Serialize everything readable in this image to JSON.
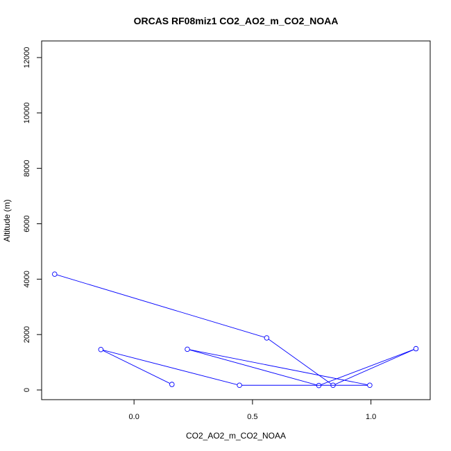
{
  "chart_data": {
    "type": "line",
    "title": "ORCAS RF08miz1 CO2_AO2_m_CO2_NOAA",
    "xlabel": "CO2_AO2_m_CO2_NOAA",
    "ylabel": "Altitude (m)",
    "xlim": [
      -0.39,
      1.25
    ],
    "ylim": [
      -350,
      12600
    ],
    "x_ticks": [
      {
        "value": 0,
        "label": "0.0"
      },
      {
        "value": 0.5,
        "label": "0.5"
      },
      {
        "value": 1,
        "label": "1.0"
      }
    ],
    "y_ticks": [
      {
        "value": 0,
        "label": "0"
      },
      {
        "value": 2000,
        "label": "2000"
      },
      {
        "value": 4000,
        "label": "4000"
      },
      {
        "value": 6000,
        "label": "6000"
      },
      {
        "value": 8000,
        "label": "8000"
      },
      {
        "value": 10000,
        "label": "10000"
      },
      {
        "value": 12000,
        "label": "12000"
      }
    ],
    "grid": false,
    "series": [
      {
        "color": "#0000ff",
        "markers": "open-circle",
        "points": [
          {
            "x": -0.335,
            "y": 4180
          },
          {
            "x": 0.56,
            "y": 1880
          },
          {
            "x": 0.84,
            "y": 170
          },
          {
            "x": 1.19,
            "y": 1490
          },
          {
            "x": 0.78,
            "y": 160
          },
          {
            "x": 0.225,
            "y": 1470
          },
          {
            "x": 0.995,
            "y": 170
          },
          {
            "x": 0.445,
            "y": 170
          },
          {
            "x": -0.14,
            "y": 1460
          },
          {
            "x": 0.16,
            "y": 200
          }
        ]
      }
    ]
  }
}
